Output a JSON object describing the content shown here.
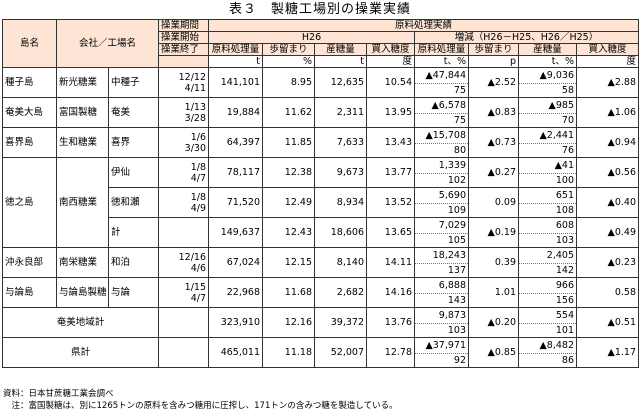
{
  "title": "表３　製糖工場別の操業実績",
  "header": {
    "island": "島名",
    "company_factory": "会社／工場名",
    "op_period": "操業期間",
    "op_start": "操業開始",
    "op_end": "操業終了",
    "processing_results": "原料処理実績",
    "h26": "H26",
    "change": "増減（H26－H25、H26／H25）",
    "col_raw": "原料処理量",
    "col_yield": "歩留まり",
    "col_sugar": "産糖量",
    "col_brix": "買入糖度",
    "unit_t": "t",
    "unit_pct": "%",
    "unit_deg": "度",
    "unit_t_pct": "t、%",
    "unit_p": "p"
  },
  "rows": {
    "tanegashima": {
      "island": "種子島",
      "company": "新光糖業",
      "factory": "中種子",
      "start": "12/12",
      "end": "4/11",
      "raw": "141,101",
      "yield": "8.95",
      "sugar": "12,635",
      "brix": "10.54",
      "d_raw": "▲47,844",
      "d_raw_pct": "75",
      "d_yield": "▲2.52",
      "d_sugar": "▲9,036",
      "d_sugar_pct": "58",
      "d_brix": "▲2.88"
    },
    "amami": {
      "island": "奄美大島",
      "company": "富国製糖",
      "factory": "奄美",
      "start": "1/13",
      "end": "3/28",
      "raw": "19,884",
      "yield": "11.62",
      "sugar": "2,311",
      "brix": "13.95",
      "d_raw": "▲6,578",
      "d_raw_pct": "75",
      "d_yield": "▲0.83",
      "d_sugar": "▲985",
      "d_sugar_pct": "70",
      "d_brix": "▲1.06"
    },
    "kikai": {
      "island": "喜界島",
      "company": "生和糖業",
      "factory": "喜界",
      "start": "1/6",
      "end": "3/30",
      "raw": "64,397",
      "yield": "11.85",
      "sugar": "7,633",
      "brix": "13.43",
      "d_raw": "▲15,708",
      "d_raw_pct": "80",
      "d_yield": "▲0.73",
      "d_sugar": "▲2,441",
      "d_sugar_pct": "76",
      "d_brix": "▲0.94"
    },
    "tokunoshima_isen": {
      "island": "徳之島",
      "company": "南西糖業",
      "factory": "伊仙",
      "start": "1/8",
      "end": "4/7",
      "raw": "78,117",
      "yield": "12.38",
      "sugar": "9,673",
      "brix": "13.77",
      "d_raw": "1,339",
      "d_raw_pct": "102",
      "d_yield": "▲0.27",
      "d_sugar": "▲41",
      "d_sugar_pct": "100",
      "d_brix": "▲0.56"
    },
    "tokunoshima_tokuwase": {
      "factory": "徳和瀬",
      "start": "1/8",
      "end": "4/9",
      "raw": "71,520",
      "yield": "12.49",
      "sugar": "8,934",
      "brix": "13.52",
      "d_raw": "5,690",
      "d_raw_pct": "109",
      "d_yield": "0.09",
      "d_sugar": "651",
      "d_sugar_pct": "108",
      "d_brix": "▲0.40"
    },
    "tokunoshima_total": {
      "factory": "計",
      "raw": "149,637",
      "yield": "12.43",
      "sugar": "18,606",
      "brix": "13.65",
      "d_raw": "7,029",
      "d_raw_pct": "105",
      "d_yield": "▲0.19",
      "d_sugar": "608",
      "d_sugar_pct": "103",
      "d_brix": "▲0.49"
    },
    "okinoerabu": {
      "island": "沖永良部",
      "company": "南栄糖業",
      "factory": "和泊",
      "start": "12/16",
      "end": "4/6",
      "raw": "67,024",
      "yield": "12.15",
      "sugar": "8,140",
      "brix": "14.11",
      "d_raw": "18,243",
      "d_raw_pct": "137",
      "d_yield": "0.39",
      "d_sugar": "2,405",
      "d_sugar_pct": "142",
      "d_brix": "▲0.23"
    },
    "yoron": {
      "island": "与論島",
      "company": "与論島製糖",
      "factory": "与論",
      "start": "1/15",
      "end": "4/7",
      "raw": "22,968",
      "yield": "11.68",
      "sugar": "2,682",
      "brix": "14.16",
      "d_raw": "6,888",
      "d_raw_pct": "143",
      "d_yield": "1.01",
      "d_sugar": "966",
      "d_sugar_pct": "156",
      "d_brix": "0.58"
    },
    "amami_total": {
      "label": "奄美地域計",
      "raw": "323,910",
      "yield": "12.16",
      "sugar": "39,372",
      "brix": "13.76",
      "d_raw": "9,873",
      "d_raw_pct": "103",
      "d_yield": "▲0.20",
      "d_sugar": "554",
      "d_sugar_pct": "101",
      "d_brix": "▲0.51"
    },
    "pref_total": {
      "label": "県計",
      "raw": "465,011",
      "yield": "11.18",
      "sugar": "52,007",
      "brix": "12.78",
      "d_raw": "▲37,971",
      "d_raw_pct": "92",
      "d_yield": "▲0.85",
      "d_sugar": "▲8,482",
      "d_sugar_pct": "86",
      "d_brix": "▲1.17"
    }
  },
  "notes": {
    "source": "資料：日本甘蔗糖工業会調べ",
    "note": "　注：富国製糖は、別に1265トンの原料を含みつ糖用に圧搾し、171トンの含みつ糖を製造している。"
  }
}
